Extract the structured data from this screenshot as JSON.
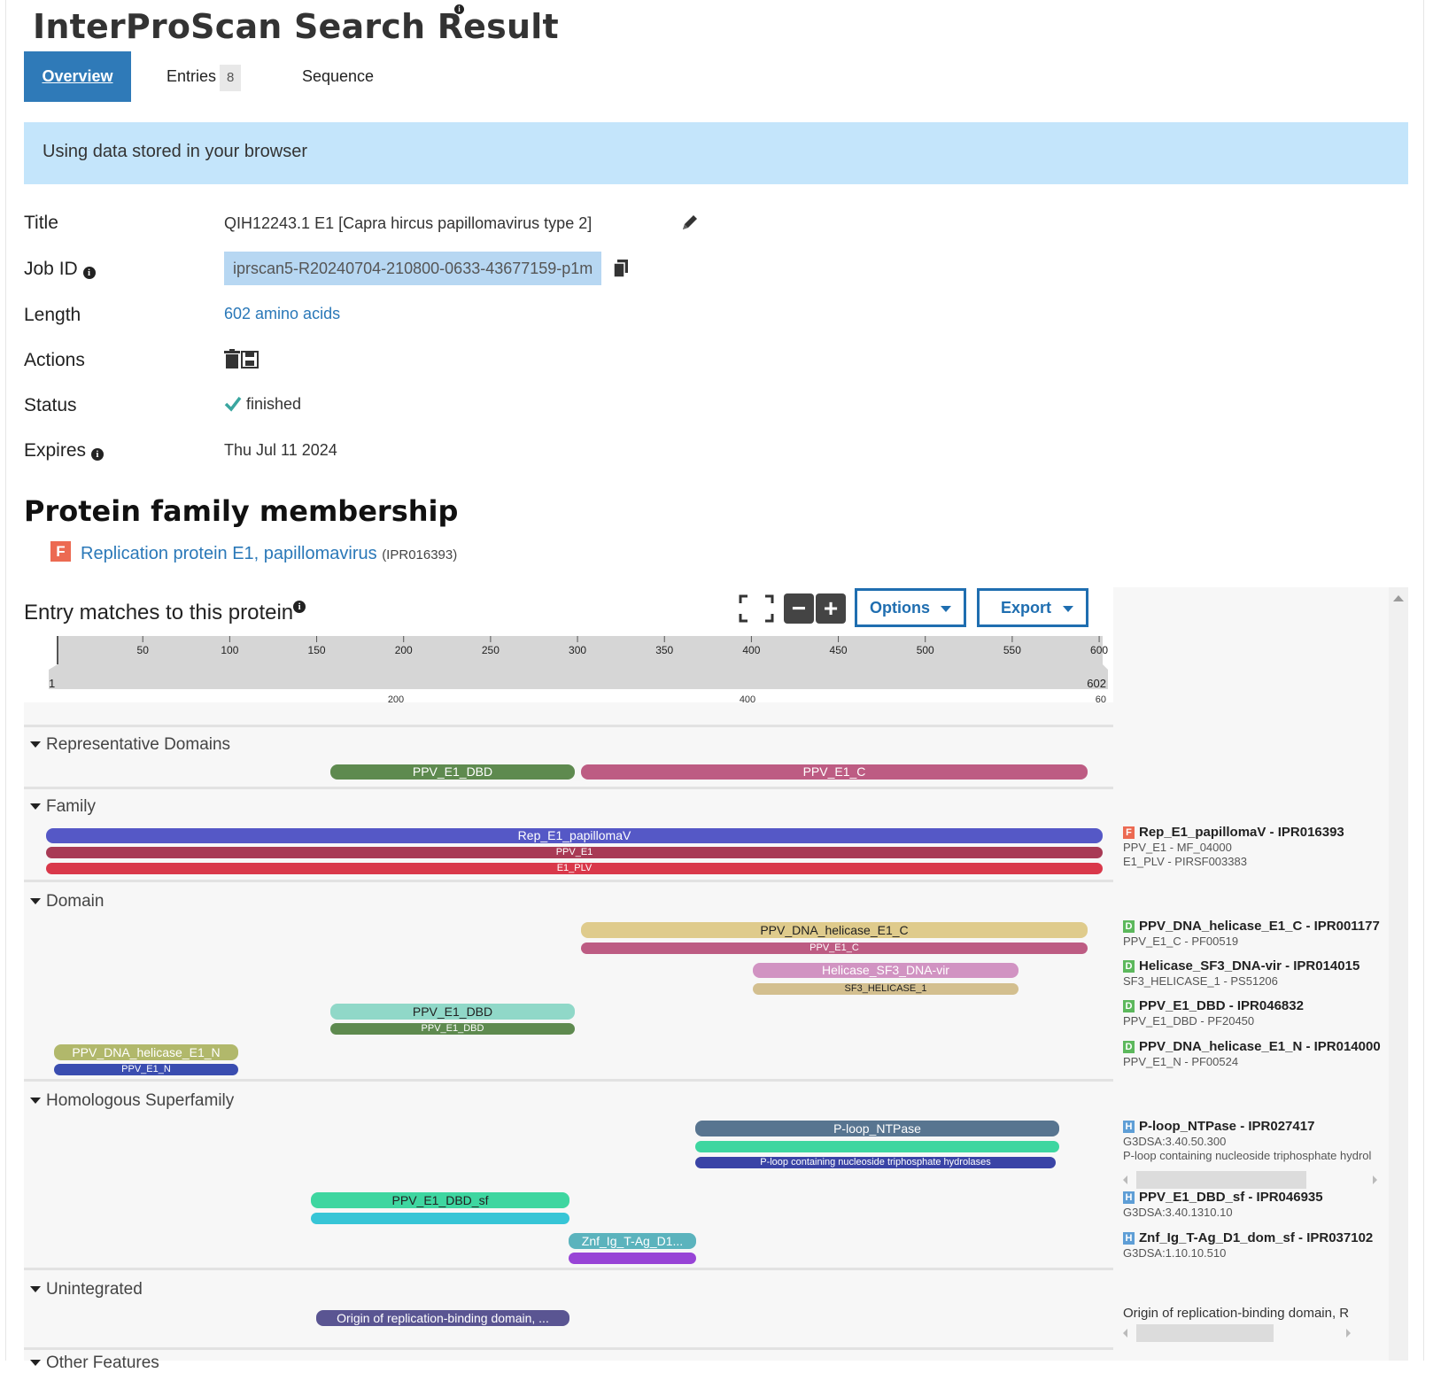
{
  "header": {
    "title": "InterProScan Search Result",
    "tabs": {
      "overview": "Overview",
      "entries": "Entries",
      "entries_count": "8",
      "sequence": "Sequence"
    }
  },
  "banner": {
    "text": "Using data stored in your browser"
  },
  "details": {
    "title_label": "Title",
    "title_value": "QIH12243.1 E1 [Capra hircus papillomavirus type 2]",
    "jobid_label": "Job ID",
    "jobid_value": "iprscan5-R20240704-210800-0633-43677159-p1m",
    "length_label": "Length",
    "length_value": "602 amino acids",
    "actions_label": "Actions",
    "status_label": "Status",
    "status_value": "finished",
    "expires_label": "Expires",
    "expires_value": "Thu Jul 11 2024"
  },
  "family": {
    "heading": "Protein family membership",
    "type_letter": "F",
    "name": "Replication protein E1, papillomavirus",
    "accession": "(IPR016393)"
  },
  "viewer": {
    "heading": "Entry matches to this protein",
    "options_label": "Options",
    "export_label": "Export",
    "ruler": {
      "ticks": [
        "50",
        "100",
        "150",
        "200",
        "250",
        "300",
        "350",
        "400",
        "450",
        "500",
        "550",
        "600"
      ],
      "start": "1",
      "end": "602",
      "lower_ticks": [
        "200",
        "400",
        "60"
      ]
    },
    "categories": {
      "representative": "Representative Domains",
      "family": "Family",
      "domain": "Domain",
      "homologous": "Homologous Superfamily",
      "unintegrated": "Unintegrated",
      "other": "Other Features"
    },
    "tracks": {
      "rep1": "PPV_E1_DBD",
      "rep2": "PPV_E1_C",
      "fam1": "Rep_E1_papillomaV",
      "fam2": "PPV_E1",
      "fam3": "E1_PLV",
      "dom1": "PPV_DNA_helicase_E1_C",
      "dom2": "PPV_E1_C",
      "dom3": "Helicase_SF3_DNA-vir",
      "dom4": "SF3_HELICASE_1",
      "dom5": "PPV_E1_DBD",
      "dom6": "PPV_E1_DBD",
      "dom7": "PPV_DNA_helicase_E1_N",
      "dom8": "PPV_E1_N",
      "hom1": "P-loop_NTPase",
      "hom3": "P-loop containing nucleoside triphosphate hydrolases",
      "hom4": "PPV_E1_DBD_sf",
      "hom6": "Znf_Ig_T-Ag_D1...",
      "unint1": "Origin of replication-binding domain, ..."
    },
    "legend": {
      "fam": {
        "letter": "F",
        "main": "Rep_E1_papillomaV - IPR016393",
        "sub1": "PPV_E1 - MF_04000",
        "sub2": "E1_PLV - PIRSF003383"
      },
      "dom1": {
        "letter": "D",
        "main": "PPV_DNA_helicase_E1_C - IPR001177",
        "sub": "PPV_E1_C - PF00519"
      },
      "dom2": {
        "letter": "D",
        "main": "Helicase_SF3_DNA-vir - IPR014015",
        "sub": "SF3_HELICASE_1 - PS51206"
      },
      "dom3": {
        "letter": "D",
        "main": "PPV_E1_DBD - IPR046832",
        "sub": "PPV_E1_DBD - PF20450"
      },
      "dom4": {
        "letter": "D",
        "main": "PPV_DNA_helicase_E1_N - IPR014000",
        "sub": "PPV_E1_N - PF00524"
      },
      "hom1": {
        "letter": "H",
        "main": "P-loop_NTPase - IPR027417",
        "sub1": "G3DSA:3.40.50.300",
        "sub2": "P-loop containing nucleoside triphosphate hydrol"
      },
      "hom2": {
        "letter": "H",
        "main": "PPV_E1_DBD_sf - IPR046935",
        "sub": "G3DSA:3.40.1310.10"
      },
      "hom3": {
        "letter": "H",
        "main": "Znf_Ig_T-Ag_D1_dom_sf - IPR037102",
        "sub": "G3DSA:1.10.10.510"
      },
      "unint": {
        "main": "Origin of replication-binding domain, R"
      }
    }
  },
  "colors": {
    "primary": "#2f7ab8",
    "banner": "#c4e5fb",
    "family_badge": "#ec6a52",
    "domain_badge": "#5cb85c",
    "homologous_badge": "#5e9ed6"
  }
}
